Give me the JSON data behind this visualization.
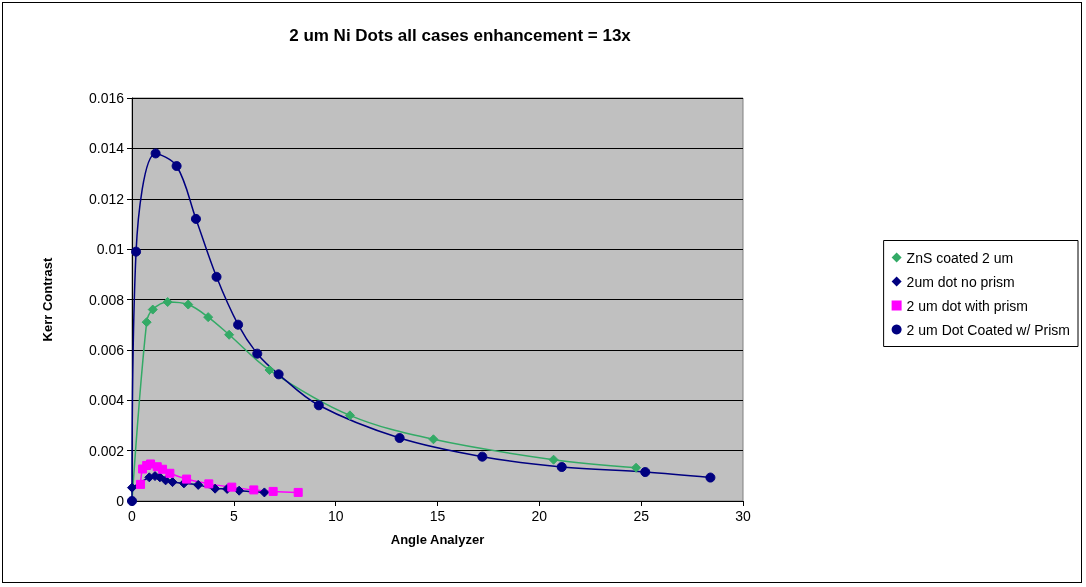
{
  "chart_data": {
    "type": "line",
    "title": "2 um Ni Dots all cases enhancement = 13x",
    "xlabel": "Angle Analyzer",
    "ylabel": "Kerr Contrast",
    "xlim": [
      0,
      30
    ],
    "xticks": [
      0,
      5,
      10,
      15,
      20,
      25,
      30
    ],
    "ylim": [
      0,
      0.016
    ],
    "yticks": [
      0,
      0.002,
      0.004,
      0.006,
      0.008,
      0.01,
      0.012,
      0.014,
      0.016
    ],
    "grid": "y",
    "legend": "right",
    "line_style": "solid",
    "series": [
      {
        "name": "ZnS coated 2 um",
        "color": "#33aa66",
        "marker": "diamond",
        "x": [
          0,
          0.72,
          1.02,
          1.75,
          2.76,
          3.74,
          4.77,
          6.75,
          10.7,
          14.8,
          20.7,
          24.75
        ],
        "values": [
          0,
          0.0071,
          0.0076,
          0.0079,
          0.0078,
          0.0073,
          0.0066,
          0.0052,
          0.0034,
          0.00245,
          0.00164,
          0.00132
        ]
      },
      {
        "name": "2um dot no prism",
        "color": "#000080",
        "marker": "diamond",
        "x": [
          0,
          0.85,
          1.13,
          1.37,
          1.65,
          1.99,
          2.55,
          3.25,
          4.08,
          4.67,
          5.26,
          5.95,
          6.5
        ],
        "values": [
          0.00053,
          0.00094,
          0.00099,
          0.00094,
          0.00082,
          0.00075,
          0.0007,
          0.00064,
          0.00049,
          0.00048,
          0.00041,
          null,
          0.00034
        ]
      },
      {
        "name": "2 um dot with prism",
        "color": "#ff00ff",
        "marker": "square",
        "x": [
          0.42,
          0.52,
          0.72,
          0.91,
          1.24,
          1.5,
          1.86,
          2.68,
          3.77,
          4.9,
          5.98,
          6.93,
          8.16
        ],
        "values": [
          0.00066,
          0.00127,
          0.00141,
          0.00147,
          0.00136,
          0.00126,
          0.0011,
          0.00087,
          0.00068,
          0.00055,
          0.00044,
          0.00038,
          0.00034
        ]
      },
      {
        "name": "2 um Dot Coated w/ Prism",
        "color": "#000080",
        "marker": "circle",
        "x": [
          0,
          0.2,
          1.16,
          2.19,
          3.14,
          4.15,
          5.21,
          6.15,
          7.2,
          9.17,
          13.14,
          17.2,
          21.1,
          25.2,
          28.4
        ],
        "values": [
          0,
          0.0099,
          0.0138,
          0.0133,
          0.0112,
          0.0089,
          0.007,
          0.00585,
          0.00503,
          0.0038,
          0.0025,
          0.00176,
          0.00135,
          0.00115,
          0.00093
        ]
      }
    ]
  }
}
